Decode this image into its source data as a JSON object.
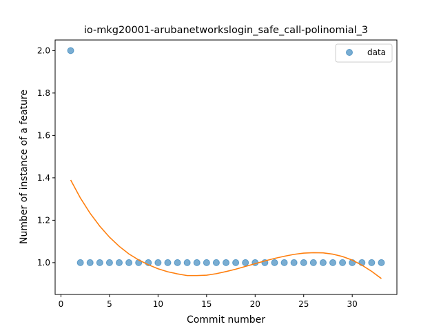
{
  "chart_data": {
    "type": "scatter",
    "title": "io-mkg20001-arubanetworkslogin_safe_call-polinomial_3",
    "xlabel": "Commit number",
    "ylabel": "Number of instance of a feature",
    "xlim": [
      -0.6,
      34.6
    ],
    "ylim": [
      0.85,
      2.05
    ],
    "xticks": [
      0,
      5,
      10,
      15,
      20,
      25,
      30
    ],
    "yticks": [
      1.0,
      1.2,
      1.4,
      1.6,
      1.8,
      2.0
    ],
    "ytick_labels": [
      "1.0",
      "1.2",
      "1.4",
      "1.6",
      "1.8",
      "2.0"
    ],
    "grid": false,
    "legend_position": "top-right",
    "series": [
      {
        "name": "data",
        "kind": "scatter",
        "color": "#1f77b4",
        "x": [
          1,
          2,
          3,
          4,
          5,
          6,
          7,
          8,
          9,
          10,
          11,
          12,
          13,
          14,
          15,
          16,
          17,
          18,
          19,
          20,
          21,
          22,
          23,
          24,
          25,
          26,
          27,
          28,
          29,
          30,
          31,
          32,
          33
        ],
        "y": [
          2,
          1,
          1,
          1,
          1,
          1,
          1,
          1,
          1,
          1,
          1,
          1,
          1,
          1,
          1,
          1,
          1,
          1,
          1,
          1,
          1,
          1,
          1,
          1,
          1,
          1,
          1,
          1,
          1,
          1,
          1,
          1,
          1
        ]
      },
      {
        "kind": "line",
        "color": "#ff7f0e",
        "x": [
          1,
          2,
          3,
          4,
          5,
          6,
          7,
          8,
          9,
          10,
          11,
          12,
          13,
          14,
          15,
          16,
          17,
          18,
          19,
          20,
          21,
          22,
          23,
          24,
          25,
          26,
          27,
          28,
          29,
          30,
          31,
          32,
          33
        ],
        "y": [
          1.39,
          1.305,
          1.233,
          1.172,
          1.12,
          1.077,
          1.041,
          1.013,
          0.99,
          0.971,
          0.957,
          0.947,
          0.939,
          0.939,
          0.941,
          0.948,
          0.958,
          0.969,
          0.982,
          0.995,
          1.008,
          1.02,
          1.03,
          1.039,
          1.045,
          1.047,
          1.046,
          1.04,
          1.029,
          1.012,
          0.988,
          0.959,
          0.925
        ]
      }
    ]
  }
}
